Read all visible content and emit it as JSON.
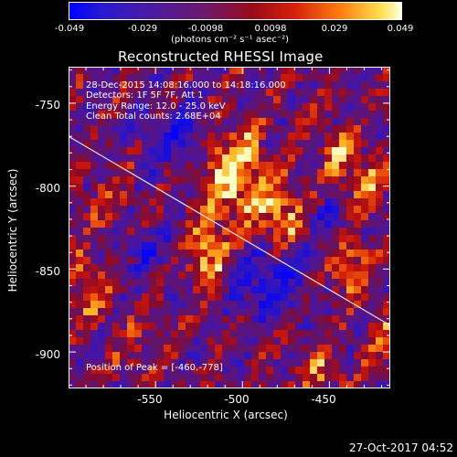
{
  "colorbar": {
    "ticks": [
      "-0.049",
      "-0.029",
      "-0.0098",
      "0.0098",
      "0.029",
      "0.049"
    ],
    "unit": "(photons cm⁻² s⁻¹ asec⁻²)",
    "range": [
      -0.049,
      0.049
    ]
  },
  "chart_data": {
    "type": "heatmap",
    "title": "Reconstructed RHESSI Image",
    "xlabel": "Heliocentric X (arcsec)",
    "ylabel": "Heliocentric Y (arcsec)",
    "xlim": [
      -600,
      -415
    ],
    "ylim": [
      -922,
      -728
    ],
    "x_ticks": [
      "-550",
      "-500",
      "-450"
    ],
    "y_ticks": [
      "-750",
      "-800",
      "-850",
      "-900"
    ],
    "peak": [
      -460,
      -778
    ],
    "limb_line": [
      [
        -600,
        -770
      ],
      [
        -415,
        -884
      ]
    ],
    "colormap": [
      "#0000ff",
      "#3a0ba0",
      "#5a1a8a",
      "#8a0a20",
      "#d81a0a",
      "#ff7a10",
      "#ffd040",
      "#ffffcc"
    ]
  },
  "annotations": {
    "line1": "28-Dec-2015 14:08:16.000 to 14:18:16.000",
    "line2": "Detectors: 1F 5F 7F, Att 1",
    "line3": "Energy Range: 12.0 - 25.0 keV",
    "line4": "Clean    Total counts: 2.68E+04",
    "peak_label": "Position of Peak = [-460,-778]"
  },
  "footer": {
    "date": "27-Oct-2017 04:52"
  }
}
